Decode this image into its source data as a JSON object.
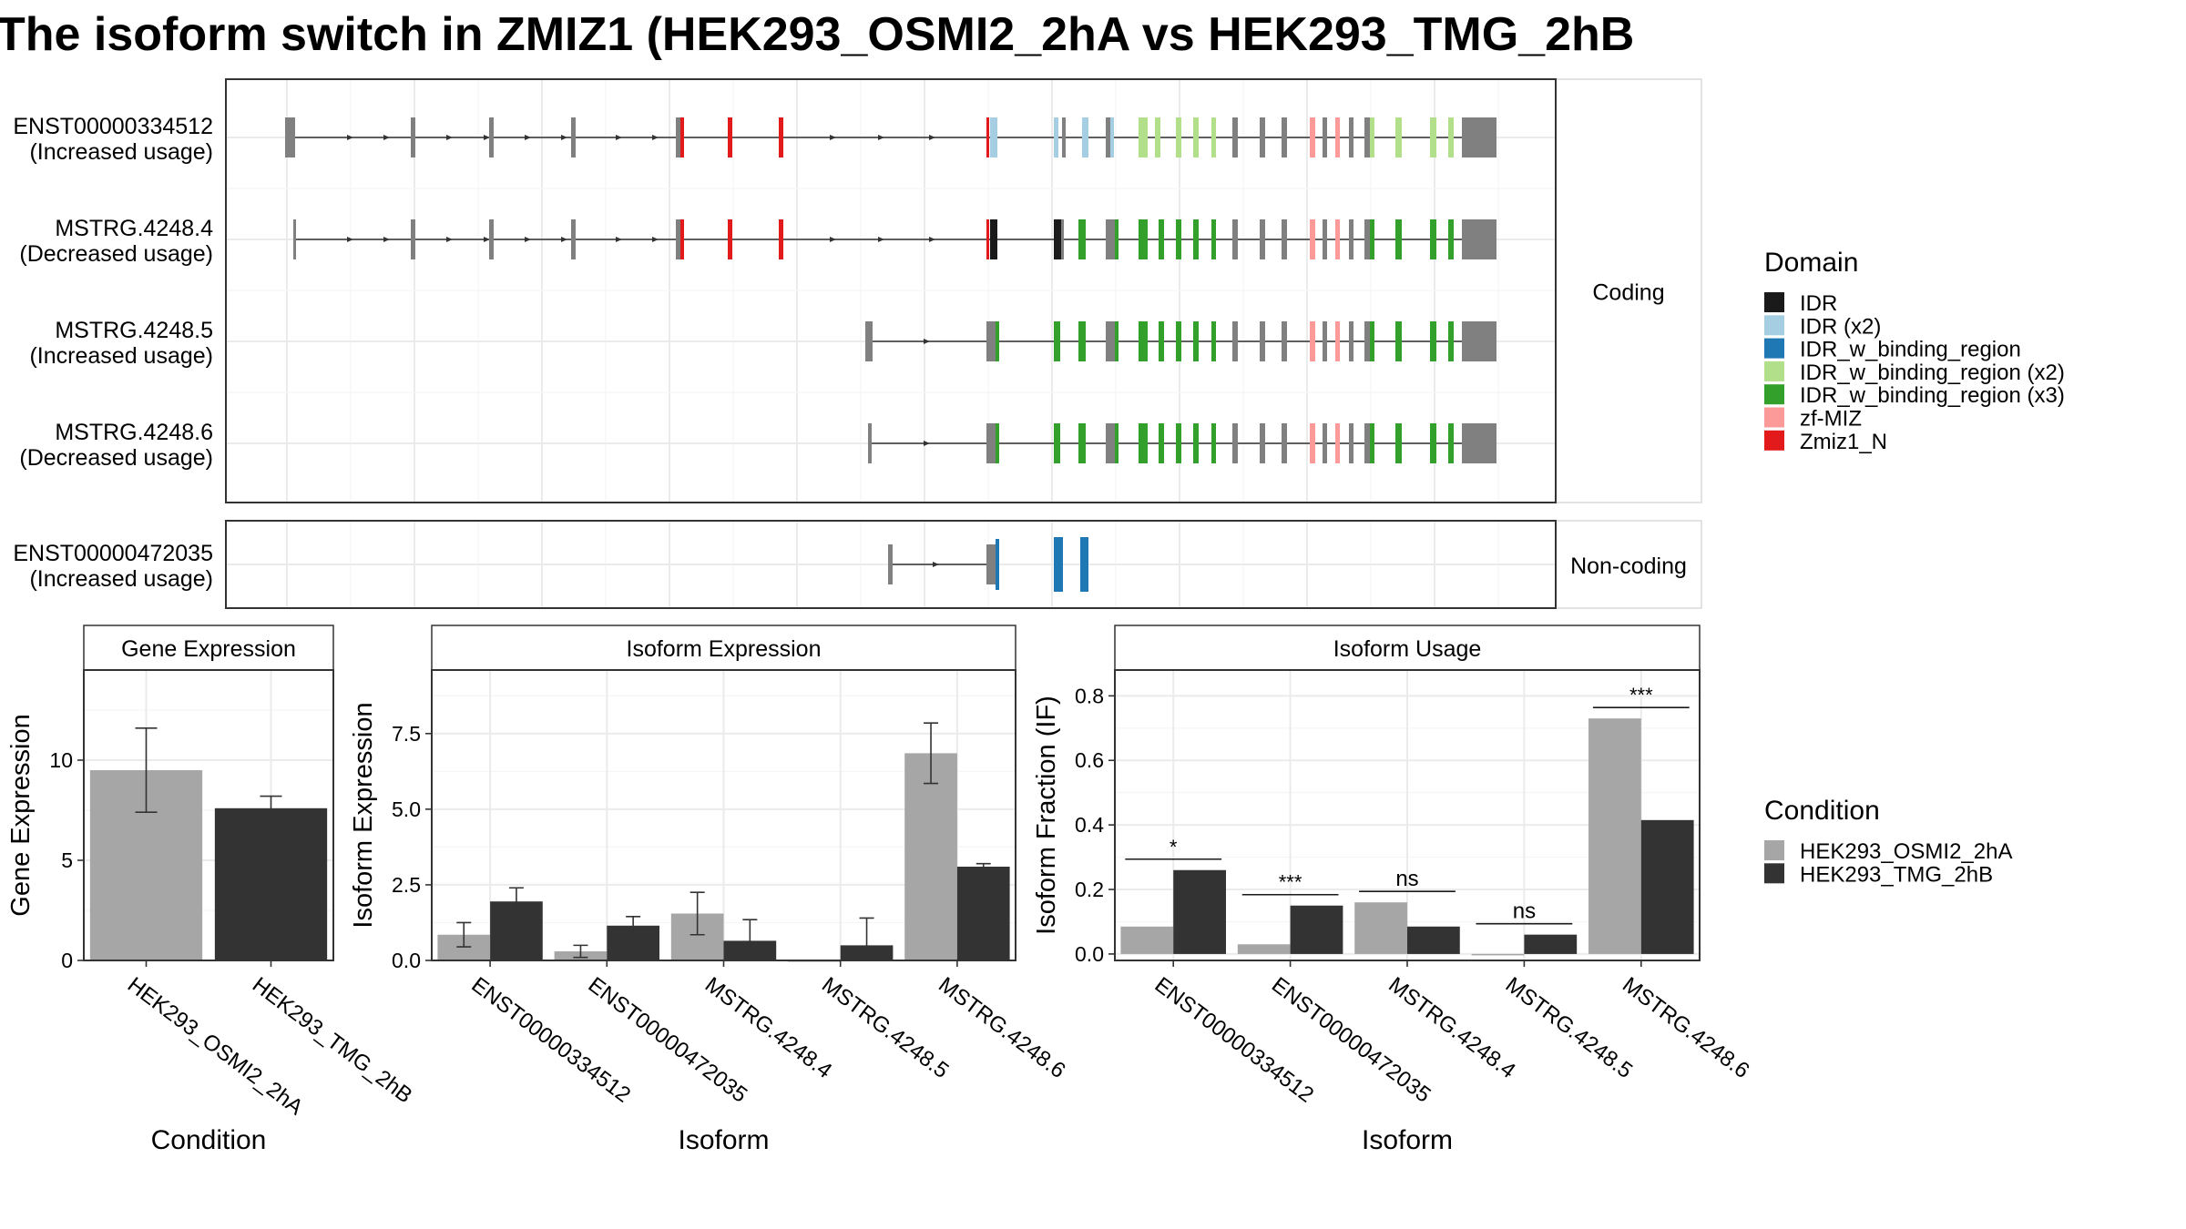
{
  "title": "The isoform switch in ZMIZ1 (HEK293_OSMI2_2hA vs HEK293_TMG_2hB",
  "colors": {
    "cond1": "#a6a6a6",
    "cond2": "#333333",
    "exon": "#808080",
    "intron": "#333333",
    "grid_major": "#ebebeb",
    "grid_minor": "#f5f5f5",
    "strip_bg": "#ffffff",
    "panel_border": "#333333"
  },
  "transcripts": {
    "facets": [
      "Coding",
      "Non-coding"
    ],
    "coding": [
      {
        "id": "ENST00000334512",
        "usage": "(Increased usage)"
      },
      {
        "id": "MSTRG.4248.4",
        "usage": "(Decreased usage)"
      },
      {
        "id": "MSTRG.4248.5",
        "usage": "(Increased usage)"
      },
      {
        "id": "MSTRG.4248.6",
        "usage": "(Decreased usage)"
      }
    ],
    "noncoding": [
      {
        "id": "ENST00000472035",
        "usage": "(Increased usage)"
      }
    ]
  },
  "domain_legend": {
    "title": "Domain",
    "items": [
      {
        "label": "IDR",
        "color": "#1a1a1a"
      },
      {
        "label": "IDR (x2)",
        "color": "#a6cee3"
      },
      {
        "label": "IDR_w_binding_region",
        "color": "#1f78b4"
      },
      {
        "label": "IDR_w_binding_region (x2)",
        "color": "#b2df8a"
      },
      {
        "label": "IDR_w_binding_region (x3)",
        "color": "#33a02c"
      },
      {
        "label": "zf-MIZ",
        "color": "#fb9a99"
      },
      {
        "label": "Zmiz1_N",
        "color": "#e31a1c"
      }
    ]
  },
  "condition_legend": {
    "title": "Condition",
    "items": [
      {
        "label": "HEK293_OSMI2_2hA",
        "color": "#a6a6a6"
      },
      {
        "label": "HEK293_TMG_2hB",
        "color": "#333333"
      }
    ]
  },
  "chart_data": [
    {
      "type": "bar",
      "title": "Gene Expression",
      "xlabel": "Condition",
      "ylabel": "Gene Expression",
      "categories": [
        "HEK293_OSMI2_2hA",
        "HEK293_TMG_2hB"
      ],
      "values": [
        9.5,
        7.6
      ],
      "errors": [
        [
          7.4,
          11.6
        ],
        [
          7.1,
          8.2
        ]
      ],
      "ylim": [
        0,
        14.5
      ],
      "yticks": [
        0,
        5,
        10
      ],
      "ytick_labels": [
        "0",
        "5",
        "10"
      ]
    },
    {
      "type": "bar",
      "title": "Isoform Expression",
      "xlabel": "Isoform",
      "ylabel": "Isoform Expression",
      "categories": [
        "ENST00000334512",
        "ENST00000472035",
        "MSTRG.4248.4",
        "MSTRG.4248.5",
        "MSTRG.4248.6"
      ],
      "series": [
        {
          "name": "HEK293_OSMI2_2hA",
          "values": [
            0.85,
            0.3,
            1.55,
            0.0,
            6.85
          ],
          "errors": [
            [
              0.45,
              1.25
            ],
            [
              0.1,
              0.5
            ],
            [
              0.85,
              2.25
            ],
            [
              0.0,
              0.0
            ],
            [
              5.85,
              7.85
            ]
          ]
        },
        {
          "name": "HEK293_TMG_2hB",
          "values": [
            1.95,
            1.15,
            0.65,
            0.5,
            3.1
          ],
          "errors": [
            [
              1.55,
              2.4
            ],
            [
              0.85,
              1.45
            ],
            [
              0.0,
              1.35
            ],
            [
              0.0,
              1.4
            ],
            [
              3.0,
              3.2
            ]
          ]
        }
      ],
      "ylim": [
        0,
        9.6
      ],
      "yticks": [
        0,
        2.5,
        5,
        7.5
      ],
      "ytick_labels": [
        "0.0",
        "2.5",
        "5.0",
        "7.5"
      ]
    },
    {
      "type": "bar",
      "title": "Isoform Usage",
      "xlabel": "Isoform",
      "ylabel": "Isoform Fraction (IF)",
      "categories": [
        "ENST00000334512",
        "ENST00000472035",
        "MSTRG.4248.4",
        "MSTRG.4248.5",
        "MSTRG.4248.6"
      ],
      "series": [
        {
          "name": "HEK293_OSMI2_2hA",
          "values": [
            0.085,
            0.03,
            0.16,
            0.0,
            0.73
          ]
        },
        {
          "name": "HEK293_TMG_2hB",
          "values": [
            0.26,
            0.15,
            0.085,
            0.06,
            0.415
          ]
        }
      ],
      "significance": [
        "*",
        "***",
        "ns",
        "ns",
        "***"
      ],
      "ylim": [
        -0.02,
        0.88
      ],
      "yticks": [
        0,
        0.2,
        0.4,
        0.6,
        0.8
      ],
      "ytick_labels": [
        "0.0",
        "0.2",
        "0.4",
        "0.6",
        "0.8"
      ]
    }
  ]
}
